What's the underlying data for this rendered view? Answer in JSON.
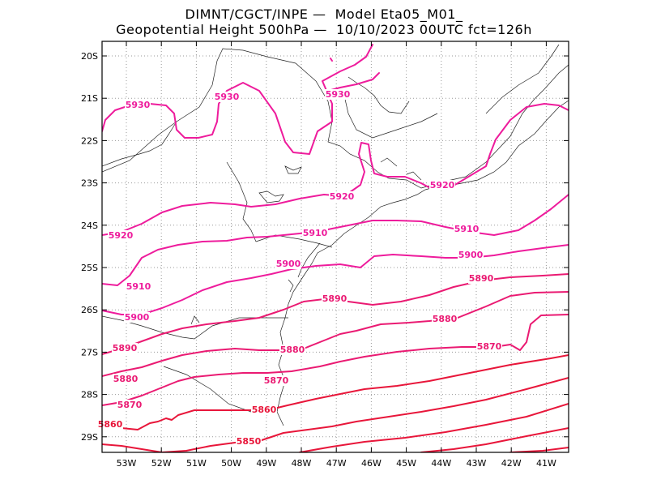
{
  "title_line1": "DIMNT/CGCT/INPE —  Model Eta05_M01_",
  "title_line2": "Geopotential Height 500hPa —  10/10/2023 00UTC fct=126h",
  "lat_ticks": [
    "20S",
    "21S",
    "22S",
    "23S",
    "24S",
    "25S",
    "26S",
    "27S",
    "28S",
    "29S"
  ],
  "lon_ticks": [
    "53W",
    "52W",
    "51W",
    "50W",
    "49W",
    "48W",
    "47W",
    "46W",
    "45W",
    "44W",
    "43W",
    "42W",
    "41W"
  ],
  "contour_labels": [
    "5930",
    "5930",
    "5930",
    "5920",
    "5920",
    "5920",
    "5910",
    "5910",
    "5910",
    "5900",
    "5900",
    "5900",
    "5890",
    "5890",
    "5890",
    "5880",
    "5880",
    "5880",
    "5870",
    "5870",
    "5870",
    "5860",
    "5860",
    "5850"
  ],
  "colors": {
    "high": "#ee1c9c",
    "mid": "#ea1a72",
    "low": "#e8163a"
  }
}
